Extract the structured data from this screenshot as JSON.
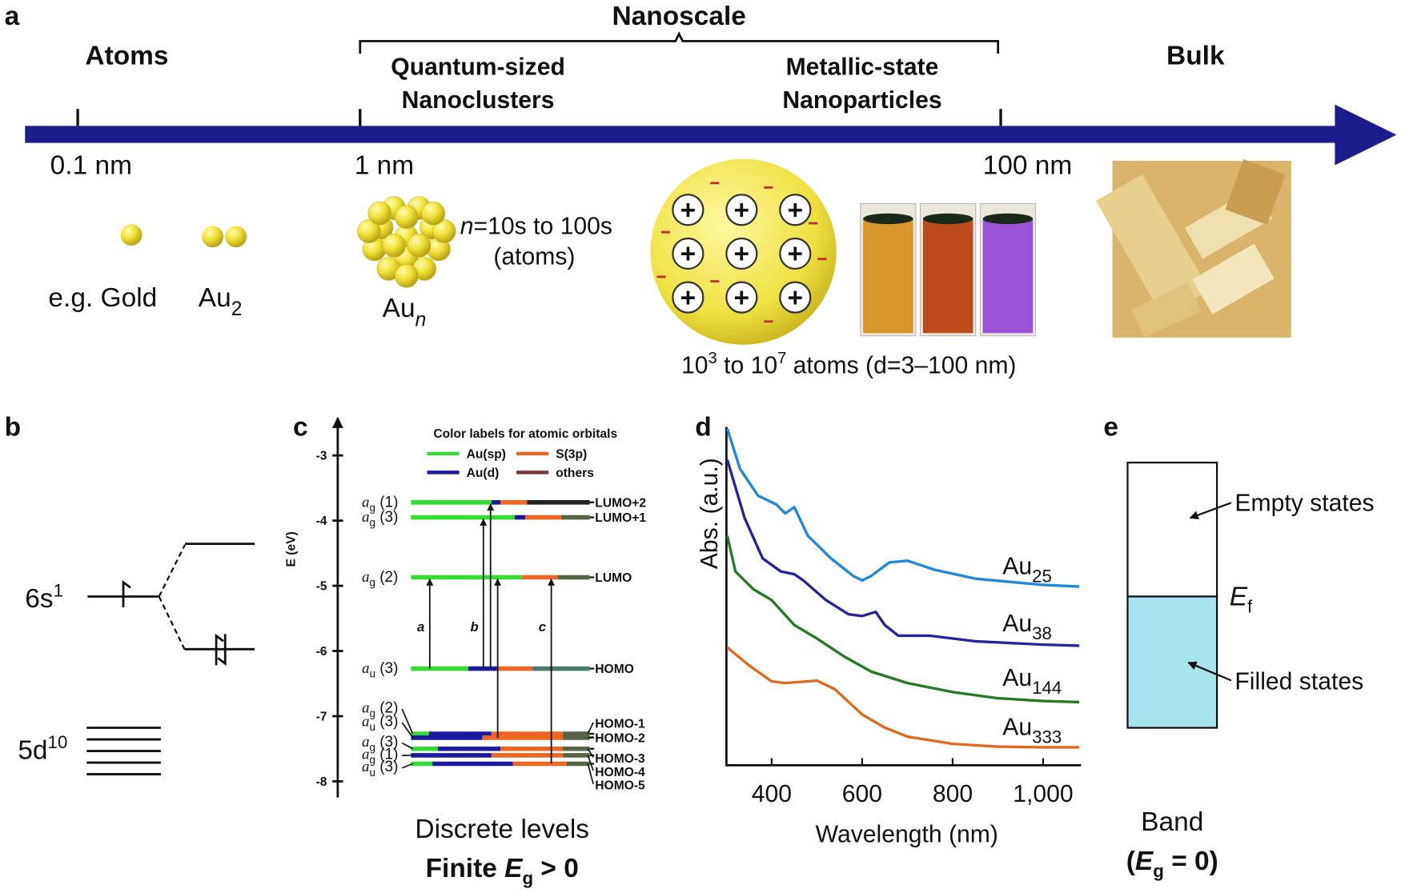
{
  "panel_a": {
    "label": "a",
    "atoms": "Atoms",
    "nanoscale": "Nanoscale",
    "quantum_line1": "Quantum-sized",
    "quantum_line2": "Nanoclusters",
    "metallic_line1": "Metallic-state",
    "metallic_line2": "Nanoparticles",
    "bulk": "Bulk",
    "ticks": [
      "0.1 nm",
      "1 nm",
      "100 nm"
    ],
    "gold_label": "e.g. Gold",
    "au2_base": "Au",
    "au2_sub": "2",
    "aun_base": "Au",
    "aun_sub": "n",
    "n_italic": "n",
    "n_range": "=10s to 100s",
    "atoms_paren": "(atoms)",
    "np_caption_1": "10",
    "np_caption_sup1": "3",
    "np_caption_2": " to 10",
    "np_caption_sup2": "7",
    "np_caption_3": " atoms (d=3–100 nm)",
    "plus": "+",
    "vial_colors": [
      "#d8962a",
      "#bf4a1c",
      "#9a52d6"
    ],
    "axis_color": "#1c1c8c",
    "gold_color": "#f3e44a"
  },
  "panel_b": {
    "label": "b",
    "s_level": "6s",
    "s_sup": "1",
    "d_level": "5d",
    "d_sup": "10"
  },
  "panel_c": {
    "label": "c",
    "y_axis_label": "E (eV)",
    "y_ticks": [
      "-3",
      "-4",
      "-5",
      "-6",
      "-7",
      "-8"
    ],
    "legend_title": "Color labels for atomic orbitals",
    "legend": [
      {
        "name": "Au(sp)",
        "color": "#33dd33"
      },
      {
        "name": "S(3p)",
        "color": "#ee6622"
      },
      {
        "name": "Au(d)",
        "color": "#1a1aa0"
      },
      {
        "name": "others",
        "color": "#7a3a3a"
      }
    ],
    "levels": [
      {
        "energy": -3.72,
        "sym": "a",
        "sub": "g",
        "deg": "(1)",
        "name": "LUMO+2",
        "segments": [
          [
            "#33dd33",
            0.45
          ],
          [
            "#1a1aa0",
            0.05
          ],
          [
            "#ee6622",
            0.15
          ],
          [
            "#222222",
            0.35
          ]
        ]
      },
      {
        "energy": -3.95,
        "sym": "a",
        "sub": "g",
        "deg": "(3)",
        "name": "LUMO+1",
        "segments": [
          [
            "#33dd33",
            0.58
          ],
          [
            "#1a1aa0",
            0.06
          ],
          [
            "#ee6622",
            0.2
          ],
          [
            "#556644",
            0.16
          ]
        ]
      },
      {
        "energy": -4.87,
        "sym": "a",
        "sub": "g",
        "deg": "(2)",
        "name": "LUMO",
        "segments": [
          [
            "#33dd33",
            0.62
          ],
          [
            "#ee6622",
            0.2
          ],
          [
            "#556644",
            0.18
          ]
        ]
      },
      {
        "energy": -6.27,
        "sym": "a",
        "sub": "u",
        "deg": "(3)",
        "name": "HOMO",
        "segments": [
          [
            "#33dd33",
            0.32
          ],
          [
            "#1a1aa0",
            0.16
          ],
          [
            "#ee6622",
            0.2
          ],
          [
            "#4a7a6a",
            0.32
          ]
        ]
      },
      {
        "energy": -7.27,
        "sym": "a",
        "sub": "g",
        "deg": "(2)",
        "name": "HOMO-1",
        "segments": [
          [
            "#33dd33",
            0.1
          ],
          [
            "#1a1aa0",
            0.35
          ],
          [
            "#ee6622",
            0.4
          ],
          [
            "#556644",
            0.15
          ]
        ]
      },
      {
        "energy": -7.33,
        "sym": "a",
        "sub": "u",
        "deg": "(3)",
        "name": "HOMO-2",
        "segments": [
          [
            "#1a1aa0",
            0.4
          ],
          [
            "#ee6622",
            0.45
          ],
          [
            "#556644",
            0.15
          ]
        ]
      },
      {
        "energy": -7.5,
        "sym": "a",
        "sub": "g",
        "deg": "(3)",
        "name": "HOMO-3",
        "segments": [
          [
            "#33dd33",
            0.15
          ],
          [
            "#1a1aa0",
            0.35
          ],
          [
            "#ee6622",
            0.35
          ],
          [
            "#556644",
            0.15
          ]
        ]
      },
      {
        "energy": -7.6,
        "sym": "a",
        "sub": "g",
        "deg": "(1)",
        "name": "HOMO-4",
        "segments": [
          [
            "#1a1aa0",
            0.45
          ],
          [
            "#ee6622",
            0.4
          ],
          [
            "#556644",
            0.15
          ]
        ]
      },
      {
        "energy": -7.73,
        "sym": "a",
        "sub": "u",
        "deg": "(3)",
        "name": "HOMO-5",
        "segments": [
          [
            "#33dd33",
            0.12
          ],
          [
            "#1a1aa0",
            0.45
          ],
          [
            "#ee6622",
            0.3
          ],
          [
            "#556644",
            0.13
          ]
        ]
      }
    ],
    "transitions": [
      {
        "label": "a",
        "from": "HOMO",
        "to": "LUMO"
      },
      {
        "label": "b",
        "from": "HOMO",
        "to": "LUMO+1"
      },
      {
        "label": "",
        "from": "HOMO",
        "to": "LUMO+2"
      },
      {
        "label": "",
        "from": "HOMO-2",
        "to": "LUMO"
      },
      {
        "label": "c",
        "from": "HOMO-5",
        "to": "LUMO"
      }
    ],
    "caption1": "Discrete levels",
    "caption2_a": "Finite ",
    "caption2_e": "E",
    "caption2_sub": "g",
    "caption2_b": " > 0"
  },
  "chart_data": {
    "type": "line",
    "title": "",
    "xlabel": "Wavelength (nm)",
    "ylabel": "Abs. (a.u.)",
    "xlim": [
      300,
      1090
    ],
    "ylim": [
      0,
      10
    ],
    "x_ticks": [
      400,
      600,
      800,
      1000
    ],
    "x_tick_labels": [
      "400",
      "600",
      "800",
      "1,000"
    ],
    "grid": false,
    "series": [
      {
        "name": "Au25",
        "base": "Au",
        "sub": "25",
        "color": "#1e88dc",
        "x": [
          302,
          330,
          370,
          410,
          430,
          450,
          480,
          530,
          580,
          600,
          620,
          660,
          700,
          760,
          850,
          1000,
          1080
        ],
        "y": [
          9.74,
          8.58,
          7.8,
          7.55,
          7.29,
          7.47,
          6.64,
          6.0,
          5.48,
          5.35,
          5.48,
          5.87,
          5.92,
          5.66,
          5.4,
          5.22,
          5.17
        ]
      },
      {
        "name": "Au38",
        "base": "Au",
        "sub": "38",
        "color": "#24249c",
        "x": [
          302,
          340,
          380,
          420,
          450,
          470,
          520,
          570,
          600,
          630,
          650,
          680,
          750,
          850,
          1000,
          1080
        ],
        "y": [
          8.84,
          7.16,
          5.99,
          5.61,
          5.53,
          5.35,
          4.78,
          4.37,
          4.32,
          4.44,
          4.06,
          3.75,
          3.75,
          3.59,
          3.49,
          3.46
        ]
      },
      {
        "name": "Au144",
        "base": "Au",
        "sub": "144",
        "color": "#257a25",
        "x": [
          302,
          320,
          360,
          400,
          450,
          500,
          560,
          620,
          700,
          800,
          900,
          1000,
          1080
        ],
        "y": [
          6.64,
          5.61,
          5.09,
          4.78,
          4.06,
          3.67,
          3.15,
          2.71,
          2.38,
          2.12,
          1.94,
          1.86,
          1.83
        ]
      },
      {
        "name": "Au333",
        "base": "Au",
        "sub": "333",
        "color": "#e06a1a",
        "x": [
          302,
          350,
          400,
          430,
          500,
          540,
          600,
          650,
          700,
          800,
          900,
          1000,
          1080
        ],
        "y": [
          3.41,
          2.89,
          2.43,
          2.38,
          2.45,
          2.2,
          1.47,
          1.09,
          0.83,
          0.62,
          0.54,
          0.52,
          0.52
        ]
      }
    ]
  },
  "panel_d": {
    "label": "d"
  },
  "panel_e": {
    "label": "e",
    "empty": "Empty states",
    "filled": "Filled states",
    "ef_base": "E",
    "ef_sub": "f",
    "caption1": "Band",
    "caption2_a": "(",
    "caption2_e": "E",
    "caption2_sub": "g",
    "caption2_b": " = 0)",
    "fill_color": "#a8e4f0"
  }
}
